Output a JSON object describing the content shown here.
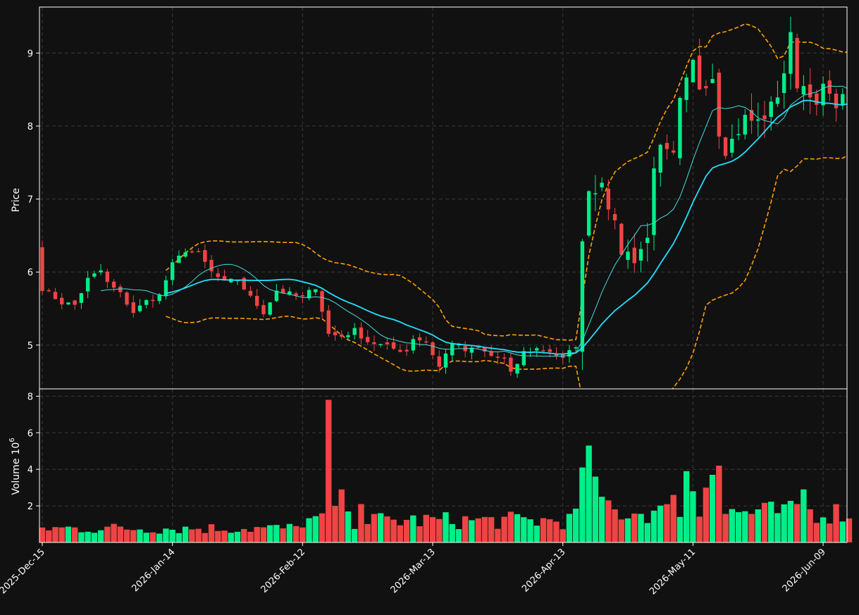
{
  "colors": {
    "background": "#111111",
    "up": "#00ee88",
    "down": "#ee4444",
    "ma_fast": "#44dddd",
    "ma_slow": "#22e0ff",
    "bands": "#ffa000",
    "grid": "#3a3a3a",
    "frame": "#ffffff"
  },
  "chart_data": {
    "type": "candlestick",
    "panels": [
      {
        "name": "price",
        "ylabel": "Price",
        "yticks": [
          5,
          6,
          7,
          8,
          9
        ],
        "ylim": [
          4.4,
          9.63
        ]
      },
      {
        "name": "volume",
        "ylabel": "Volume",
        "ylabel_exponent": "10",
        "ylabel_power": "6",
        "yticks": [
          "2",
          "4",
          "6",
          "8"
        ],
        "ylim": [
          0,
          8.4
        ]
      }
    ],
    "x_ticks": [
      {
        "label": "2025-Dec-15",
        "index": 0
      },
      {
        "label": "2026-Jan-14",
        "index": 20
      },
      {
        "label": "2026-Feb-12",
        "index": 40
      },
      {
        "label": "2026-Mar-13",
        "index": 60
      },
      {
        "label": "2026-Apr-13",
        "index": 80
      },
      {
        "label": "2026-May-11",
        "index": 100
      },
      {
        "label": "2026-Jun-09",
        "index": 120
      }
    ],
    "grid": true,
    "close_anchors": [
      [
        0,
        5.78
      ],
      [
        3,
        5.58
      ],
      [
        5,
        5.55
      ],
      [
        7,
        5.9
      ],
      [
        9,
        6.02
      ],
      [
        10,
        5.85
      ],
      [
        12,
        5.7
      ],
      [
        14,
        5.45
      ],
      [
        16,
        5.6
      ],
      [
        18,
        5.68
      ],
      [
        20,
        6.1
      ],
      [
        22,
        6.3
      ],
      [
        24,
        6.25
      ],
      [
        26,
        6.0
      ],
      [
        28,
        5.85
      ],
      [
        30,
        5.9
      ],
      [
        32,
        5.65
      ],
      [
        34,
        5.45
      ],
      [
        36,
        5.75
      ],
      [
        38,
        5.7
      ],
      [
        40,
        5.65
      ],
      [
        42,
        5.8
      ],
      [
        44,
        5.15
      ],
      [
        46,
        5.12
      ],
      [
        48,
        5.2
      ],
      [
        50,
        5.05
      ],
      [
        52,
        5.0
      ],
      [
        54,
        4.95
      ],
      [
        56,
        4.92
      ],
      [
        57,
        5.1
      ],
      [
        59,
        5.05
      ],
      [
        61,
        4.7
      ],
      [
        63,
        5.05
      ],
      [
        65,
        4.92
      ],
      [
        67,
        4.95
      ],
      [
        69,
        4.85
      ],
      [
        71,
        4.8
      ],
      [
        72,
        4.6
      ],
      [
        74,
        4.9
      ],
      [
        76,
        4.95
      ],
      [
        78,
        4.92
      ],
      [
        80,
        4.8
      ],
      [
        82,
        5.0
      ],
      [
        83,
        6.35
      ],
      [
        84,
        7.2
      ],
      [
        85,
        7.1
      ],
      [
        86,
        7.3
      ],
      [
        88,
        6.6
      ],
      [
        89,
        6.3
      ],
      [
        91,
        6.2
      ],
      [
        93,
        6.45
      ],
      [
        94,
        7.5
      ],
      [
        95,
        7.65
      ],
      [
        97,
        7.55
      ],
      [
        98,
        8.3
      ],
      [
        100,
        8.85
      ],
      [
        101,
        8.55
      ],
      [
        103,
        8.7
      ],
      [
        104,
        7.95
      ],
      [
        105,
        7.7
      ],
      [
        106,
        7.8
      ],
      [
        108,
        8.1
      ],
      [
        110,
        8.05
      ],
      [
        112,
        8.25
      ],
      [
        113,
        8.45
      ],
      [
        114,
        8.75
      ],
      [
        115,
        9.2
      ],
      [
        116,
        8.6
      ],
      [
        118,
        8.5
      ],
      [
        119,
        8.2
      ],
      [
        120,
        8.55
      ],
      [
        121,
        8.35
      ]
    ],
    "volume_spikes": [
      [
        44,
        7.8
      ],
      [
        45,
        2.0
      ],
      [
        46,
        2.9
      ],
      [
        49,
        2.1
      ],
      [
        83,
        4.1
      ],
      [
        84,
        5.3
      ],
      [
        85,
        3.6
      ],
      [
        86,
        2.5
      ],
      [
        87,
        2.3
      ],
      [
        97,
        2.6
      ],
      [
        99,
        3.9
      ],
      [
        100,
        2.8
      ],
      [
        102,
        3.0
      ],
      [
        103,
        3.7
      ],
      [
        104,
        4.2
      ],
      [
        116,
        2.1
      ],
      [
        117,
        2.9
      ]
    ]
  }
}
